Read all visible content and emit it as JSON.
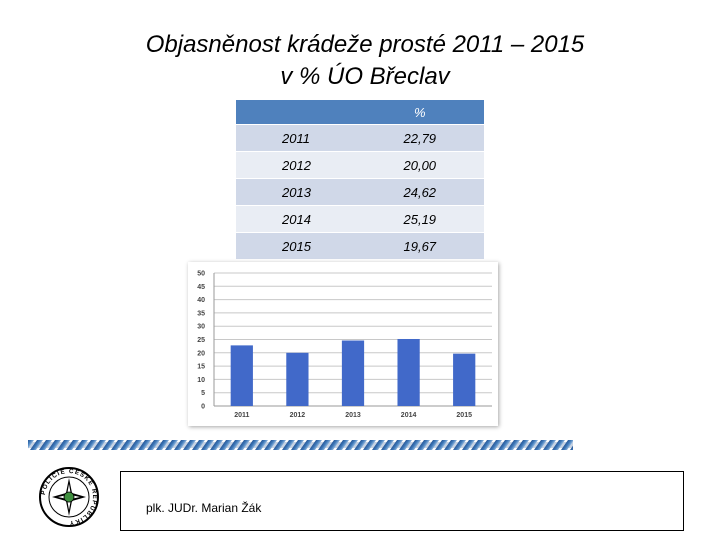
{
  "title_line1": "Objasněnost krádeže prosté 2011 – 2015",
  "title_line2": "v % ÚO Břeclav",
  "table": {
    "header": [
      "",
      "%"
    ],
    "rows": [
      [
        "2011",
        "22,79"
      ],
      [
        "2012",
        "20,00"
      ],
      [
        "2013",
        "24,62"
      ],
      [
        "2014",
        "25,19"
      ],
      [
        "2015",
        "19,67"
      ]
    ]
  },
  "chart_data": {
    "type": "bar",
    "title": "",
    "xlabel": "",
    "ylabel": "",
    "categories": [
      "2011",
      "2012",
      "2013",
      "2014",
      "2015"
    ],
    "values": [
      22.79,
      20.0,
      24.62,
      25.19,
      19.67
    ],
    "ylim": [
      0,
      50
    ],
    "yticks": [
      0,
      5,
      10,
      15,
      20,
      25,
      30,
      35,
      40,
      45,
      50
    ],
    "grid": true,
    "bar_color": "#4169c9"
  },
  "logo": {
    "text": "POLICIE ČESKÉ REPUBLIKY"
  },
  "footer": {
    "author": "plk. JUDr. Marian Žák"
  }
}
